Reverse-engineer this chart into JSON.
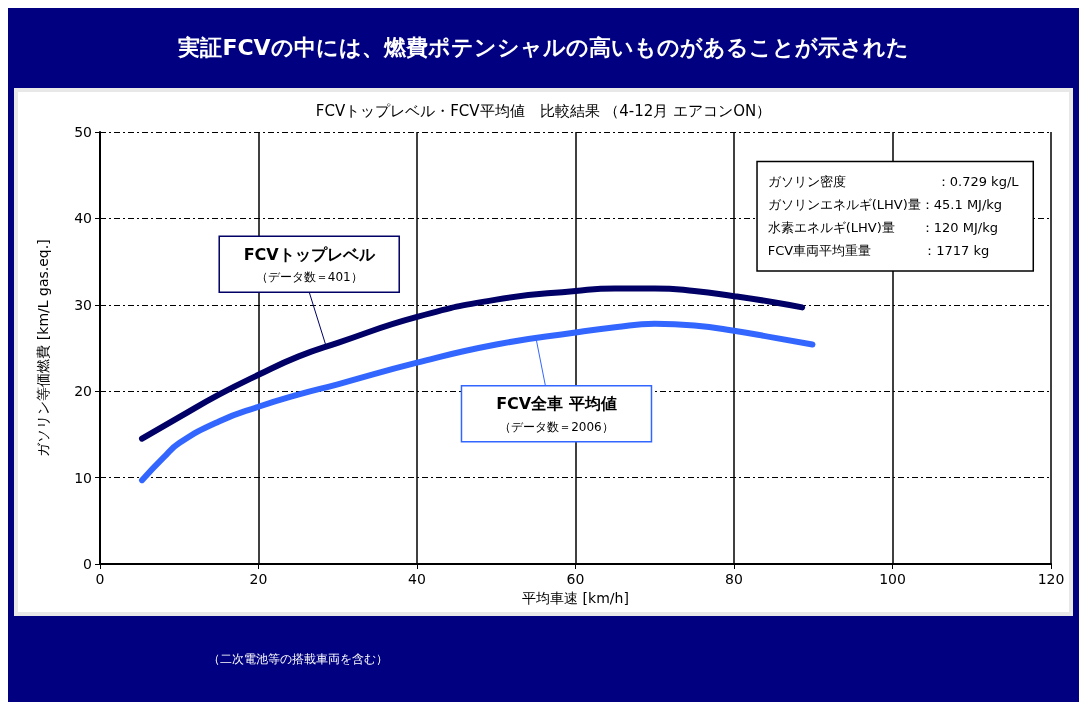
{
  "chart_data": {
    "type": "line",
    "title": "実証FCVの中には、燃費ポテンシャルの高いものがあることが示された",
    "subtitle": "FCVトップレベル・FCV平均値　比較結果 （4-12月 エアコンON）",
    "xlabel": "平均車速 [km/h]",
    "ylabel": "ガソリン等価燃費 [km/L gas.eq.]",
    "xlim": [
      0,
      120
    ],
    "xticks": [
      0,
      20,
      40,
      60,
      80,
      100,
      120
    ],
    "ylim": [
      0,
      50
    ],
    "yticks": [
      0,
      10,
      20,
      30,
      40,
      50
    ],
    "grid": true,
    "legend": false,
    "marker": "none",
    "line_style": "solid",
    "series": [
      {
        "name": "FCVトップレベル",
        "color": "#000066",
        "x": [
          5.3,
          10,
          15,
          20,
          25,
          30,
          40,
          50,
          60,
          65,
          70,
          75,
          80,
          85,
          88.6
        ],
        "values": [
          14.5,
          17.0,
          19.6,
          21.9,
          24.0,
          25.6,
          28.6,
          30.6,
          31.6,
          31.9,
          31.9,
          31.6,
          31.0,
          30.3,
          29.7
        ]
      },
      {
        "name": "FCV全車 平均値",
        "color": "#3366ff",
        "x": [
          5.3,
          8,
          10,
          15,
          20,
          25,
          30,
          40,
          50,
          60,
          65,
          70,
          75,
          80,
          85,
          89.9
        ],
        "values": [
          9.7,
          12.3,
          14.0,
          16.5,
          18.2,
          19.6,
          20.8,
          23.3,
          25.4,
          26.8,
          27.4,
          27.8,
          27.6,
          27.0,
          26.2,
          25.4
        ]
      }
    ],
    "annotations": [
      {
        "text": "（データ数＝401）",
        "x": 28.5,
        "y": 25.3
      },
      {
        "text": "（データ数＝2006）",
        "x": 55,
        "y": 26.2
      },
      "ガソリン密度　　　　　　　：0.729 kg/L",
      "ガソリンエネルギ(LHV)量：45.1 MJ/kg",
      "水素エネルギ(LHV)量　　：120 MJ/kg",
      "FCV車両平均重量　　　　：1717 kg",
      "（二次電池等の搭載車両を含む）"
    ]
  }
}
